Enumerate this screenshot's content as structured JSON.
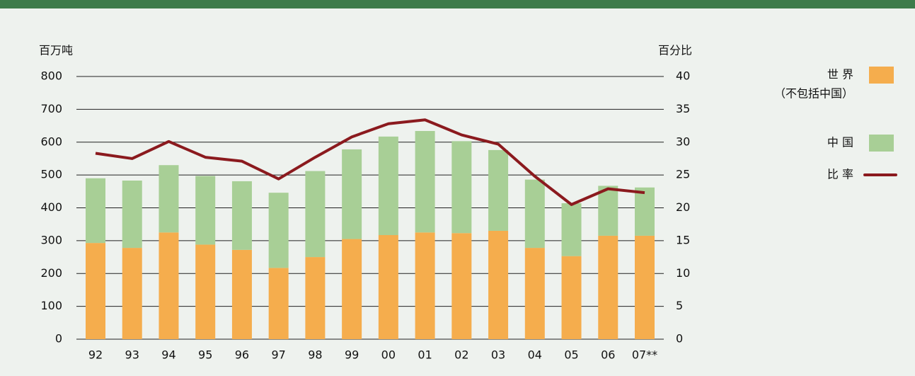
{
  "chart_data": {
    "type": "bar",
    "stacked": true,
    "y_label": "百万吨",
    "y2_label": "百分比",
    "categories": [
      "92",
      "93",
      "94",
      "95",
      "96",
      "97",
      "98",
      "99",
      "00",
      "01",
      "02",
      "03",
      "04",
      "05",
      "06",
      "07**"
    ],
    "series": [
      {
        "name": "世 界",
        "name_note": "（不包括中国）",
        "color": "#f5ad4d",
        "type": "bar",
        "values": [
          293,
          278,
          325,
          288,
          272,
          217,
          250,
          305,
          317,
          325,
          323,
          330,
          278,
          253,
          315,
          315
        ]
      },
      {
        "name": "中 国",
        "color": "#a8cf96",
        "type": "bar",
        "values": [
          197,
          205,
          205,
          209,
          209,
          229,
          262,
          273,
          300,
          309,
          280,
          246,
          208,
          161,
          152,
          147
        ]
      },
      {
        "name": "比 率",
        "color": "#8b1a1e",
        "type": "line",
        "axis": "y2",
        "values": [
          28.3,
          27.5,
          30.1,
          27.7,
          27.1,
          24.4,
          27.7,
          30.8,
          32.8,
          33.4,
          31.1,
          29.7,
          24.8,
          20.5,
          22.9,
          22.3
        ]
      }
    ],
    "ylim": [
      0,
      800
    ],
    "yticks": [
      0,
      100,
      200,
      300,
      400,
      500,
      600,
      700,
      800
    ],
    "y2lim": [
      0,
      40
    ],
    "y2ticks": [
      0,
      5,
      10,
      15,
      20,
      25,
      30,
      35,
      40
    ],
    "grid": true,
    "legend": "right"
  }
}
